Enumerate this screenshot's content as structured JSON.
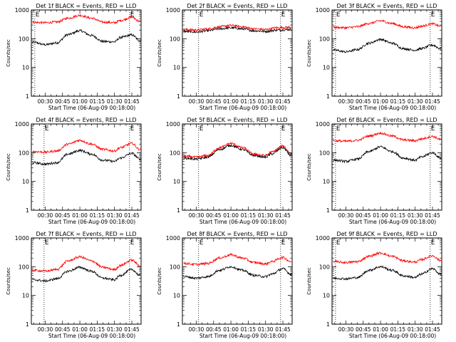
{
  "figure": {
    "x_axis_label": "Start Time (06-Aug-09 00:18:00)",
    "y_axis_label": "Counts/sec",
    "x_tick_labels": [
      "00:30",
      "00:45",
      "01:00",
      "01:15",
      "01:30",
      "01:45"
    ],
    "y_tick_labels": [
      "1",
      "10",
      "100",
      "1000"
    ],
    "marker_label": "E",
    "colors": {
      "events": "#000000",
      "lld": "#ff0000"
    }
  },
  "chart_data": [
    {
      "type": "line",
      "title": "Det 1f BLACK = Events, RED = LLD",
      "xlabel": "Start Time (06-Aug-09 00:18:00)",
      "ylabel": "Counts/sec",
      "yscale": "log",
      "ylim": [
        1,
        1000
      ],
      "xlim": [
        "00:18",
        "01:53"
      ],
      "x_ticks": [
        "00:30",
        "00:45",
        "01:00",
        "01:15",
        "01:30",
        "01:45"
      ],
      "marker_lines": [
        "00:21",
        "01:43"
      ],
      "series": [
        {
          "color": "#000000",
          "x": [
            "00:20",
            "00:30",
            "00:40",
            "00:50",
            "01:00",
            "01:10",
            "01:20",
            "01:30",
            "01:35",
            "01:45",
            "01:52"
          ],
          "values": [
            75,
            62,
            72,
            140,
            190,
            130,
            80,
            78,
            110,
            135,
            85
          ]
        },
        {
          "color": "#ff0000",
          "x": [
            "00:20",
            "00:30",
            "00:40",
            "00:50",
            "01:00",
            "01:10",
            "01:20",
            "01:30",
            "01:35",
            "01:45",
            "01:52"
          ],
          "values": [
            370,
            360,
            380,
            520,
            650,
            520,
            380,
            360,
            430,
            560,
            400
          ]
        }
      ]
    },
    {
      "type": "line",
      "title": "Det 2f BLACK = Events, RED = LLD",
      "xlabel": "Start Time (06-Aug-09 00:18:00)",
      "ylabel": "Counts/sec",
      "yscale": "log",
      "ylim": [
        1,
        1000
      ],
      "xlim": [
        "00:18",
        "01:53"
      ],
      "x_ticks": [
        "00:30",
        "00:45",
        "01:00",
        "01:15",
        "01:30",
        "01:45"
      ],
      "marker_lines": [
        "00:32",
        "01:43"
      ],
      "series": [
        {
          "color": "#000000",
          "x": [
            "00:20",
            "00:30",
            "00:40",
            "00:50",
            "01:00",
            "01:10",
            "01:20",
            "01:30",
            "01:40",
            "01:52"
          ],
          "values": [
            180,
            170,
            190,
            220,
            240,
            220,
            190,
            180,
            200,
            210
          ]
        },
        {
          "color": "#ff0000",
          "x": [
            "00:20",
            "00:30",
            "00:40",
            "00:50",
            "01:00",
            "01:10",
            "01:20",
            "01:30",
            "01:40",
            "01:52"
          ],
          "values": [
            210,
            200,
            220,
            260,
            290,
            260,
            220,
            210,
            240,
            250
          ]
        }
      ]
    },
    {
      "type": "line",
      "title": "Det 3f BLACK = Events, RED = LLD",
      "xlabel": "Start Time (06-Aug-09 00:18:00)",
      "ylabel": "Counts/sec",
      "yscale": "log",
      "ylim": [
        1,
        1000
      ],
      "xlim": [
        "00:18",
        "01:53"
      ],
      "x_ticks": [
        "00:30",
        "00:45",
        "01:00",
        "01:15",
        "01:30",
        "01:45"
      ],
      "marker_lines": [
        "00:21",
        "01:43"
      ],
      "series": [
        {
          "color": "#000000",
          "x": [
            "00:20",
            "00:30",
            "00:40",
            "00:50",
            "01:00",
            "01:10",
            "01:20",
            "01:30",
            "01:35",
            "01:45",
            "01:52"
          ],
          "values": [
            40,
            35,
            42,
            70,
            95,
            70,
            45,
            40,
            45,
            60,
            45
          ]
        },
        {
          "color": "#ff0000",
          "x": [
            "00:20",
            "00:30",
            "00:40",
            "00:50",
            "01:00",
            "01:10",
            "01:20",
            "01:30",
            "01:35",
            "01:45",
            "01:52"
          ],
          "values": [
            250,
            240,
            260,
            340,
            420,
            340,
            260,
            240,
            270,
            330,
            270
          ]
        }
      ]
    },
    {
      "type": "line",
      "title": "Det 4f BLACK = Events, RED = LLD",
      "xlabel": "Start Time (06-Aug-09 00:18:00)",
      "ylabel": "Counts/sec",
      "yscale": "log",
      "ylim": [
        1,
        1000
      ],
      "xlim": [
        "00:18",
        "01:53"
      ],
      "x_ticks": [
        "00:30",
        "00:45",
        "01:00",
        "01:15",
        "01:30",
        "01:45"
      ],
      "marker_lines": [
        "00:29",
        "01:43"
      ],
      "series": [
        {
          "color": "#000000",
          "x": [
            "00:20",
            "00:30",
            "00:40",
            "00:50",
            "01:00",
            "01:10",
            "01:20",
            "01:30",
            "01:35",
            "01:45",
            "01:52"
          ],
          "values": [
            45,
            40,
            45,
            90,
            120,
            90,
            55,
            50,
            65,
            95,
            60
          ]
        },
        {
          "color": "#ff0000",
          "x": [
            "00:20",
            "00:30",
            "00:40",
            "00:50",
            "01:00",
            "01:10",
            "01:20",
            "01:30",
            "01:35",
            "01:45",
            "01:52"
          ],
          "values": [
            110,
            105,
            115,
            200,
            270,
            200,
            130,
            115,
            150,
            210,
            130
          ]
        }
      ]
    },
    {
      "type": "line",
      "title": "Det 5f BLACK = Events, RED = LLD",
      "xlabel": "Start Time (06-Aug-09 00:18:00)",
      "ylabel": "Counts/sec",
      "yscale": "log",
      "ylim": [
        1,
        1000
      ],
      "xlim": [
        "00:18",
        "01:53"
      ],
      "x_ticks": [
        "00:30",
        "00:45",
        "01:00",
        "01:15",
        "01:30",
        "01:45"
      ],
      "marker_lines": [
        "00:32",
        "01:43"
      ],
      "series": [
        {
          "color": "#000000",
          "x": [
            "00:20",
            "00:30",
            "00:40",
            "00:50",
            "01:00",
            "01:10",
            "01:20",
            "01:30",
            "01:35",
            "01:45",
            "01:52"
          ],
          "values": [
            65,
            60,
            70,
            130,
            180,
            130,
            80,
            70,
            90,
            150,
            80
          ]
        },
        {
          "color": "#ff0000",
          "x": [
            "00:20",
            "00:30",
            "00:40",
            "00:50",
            "01:00",
            "01:10",
            "01:20",
            "01:30",
            "01:35",
            "01:45",
            "01:52"
          ],
          "values": [
            75,
            70,
            80,
            150,
            210,
            150,
            90,
            80,
            105,
            170,
            95
          ]
        }
      ]
    },
    {
      "type": "line",
      "title": "Det 6f BLACK = Events, RED = LLD",
      "xlabel": "Start Time (06-Aug-09 00:18:00)",
      "ylabel": "Counts/sec",
      "yscale": "log",
      "ylim": [
        1,
        1000
      ],
      "xlim": [
        "00:18",
        "01:53"
      ],
      "x_ticks": [
        "00:30",
        "00:45",
        "01:00",
        "01:15",
        "01:30",
        "01:45"
      ],
      "marker_lines": [
        "00:21",
        "01:43"
      ],
      "series": [
        {
          "color": "#000000",
          "x": [
            "00:20",
            "00:30",
            "00:40",
            "00:50",
            "01:00",
            "01:10",
            "01:20",
            "01:30",
            "01:35",
            "01:45",
            "01:52"
          ],
          "values": [
            55,
            50,
            60,
            110,
            160,
            110,
            65,
            55,
            70,
            100,
            65
          ]
        },
        {
          "color": "#ff0000",
          "x": [
            "00:20",
            "00:30",
            "00:40",
            "00:50",
            "01:00",
            "01:10",
            "01:20",
            "01:30",
            "01:35",
            "01:45",
            "01:52"
          ],
          "values": [
            260,
            250,
            270,
            380,
            480,
            380,
            280,
            260,
            300,
            370,
            290
          ]
        }
      ]
    },
    {
      "type": "line",
      "title": "Det 7f BLACK = Events, RED = LLD",
      "xlabel": "Start Time (06-Aug-09 00:18:00)",
      "ylabel": "Counts/sec",
      "yscale": "log",
      "ylim": [
        1,
        1000
      ],
      "xlim": [
        "00:18",
        "01:53"
      ],
      "x_ticks": [
        "00:30",
        "00:45",
        "01:00",
        "01:15",
        "01:30",
        "01:45"
      ],
      "marker_lines": [
        "00:29",
        "01:43"
      ],
      "series": [
        {
          "color": "#000000",
          "x": [
            "00:20",
            "00:30",
            "00:40",
            "00:50",
            "01:00",
            "01:10",
            "01:20",
            "01:30",
            "01:35",
            "01:45",
            "01:52"
          ],
          "values": [
            35,
            32,
            38,
            70,
            95,
            70,
            40,
            35,
            50,
            80,
            50
          ]
        },
        {
          "color": "#ff0000",
          "x": [
            "00:20",
            "00:30",
            "00:40",
            "00:50",
            "01:00",
            "01:10",
            "01:20",
            "01:30",
            "01:35",
            "01:45",
            "01:52"
          ],
          "values": [
            75,
            70,
            80,
            160,
            220,
            160,
            95,
            80,
            110,
            170,
            110
          ]
        }
      ]
    },
    {
      "type": "line",
      "title": "Det 8f BLACK = Events, RED = LLD",
      "xlabel": "Start Time (06-Aug-09 00:18:00)",
      "ylabel": "Counts/sec",
      "yscale": "log",
      "ylim": [
        1,
        1000
      ],
      "xlim": [
        "00:18",
        "01:53"
      ],
      "x_ticks": [
        "00:30",
        "00:45",
        "01:00",
        "01:15",
        "01:30",
        "01:45"
      ],
      "marker_lines": [
        "00:32",
        "01:43"
      ],
      "series": [
        {
          "color": "#000000",
          "x": [
            "00:20",
            "00:30",
            "00:40",
            "00:50",
            "01:00",
            "01:10",
            "01:20",
            "01:30",
            "01:35",
            "01:45",
            "01:52"
          ],
          "values": [
            45,
            40,
            45,
            75,
            100,
            75,
            50,
            45,
            55,
            85,
            55
          ]
        },
        {
          "color": "#ff0000",
          "x": [
            "00:20",
            "00:30",
            "00:40",
            "00:50",
            "01:00",
            "01:10",
            "01:20",
            "01:30",
            "01:35",
            "01:45",
            "01:52"
          ],
          "values": [
            130,
            120,
            130,
            200,
            260,
            200,
            140,
            125,
            150,
            210,
            150
          ]
        }
      ]
    },
    {
      "type": "line",
      "title": "Det 9f BLACK = Events, RED = LLD",
      "xlabel": "Start Time (06-Aug-09 00:18:00)",
      "ylabel": "Counts/sec",
      "yscale": "log",
      "ylim": [
        1,
        1000
      ],
      "xlim": [
        "00:18",
        "01:53"
      ],
      "x_ticks": [
        "00:30",
        "00:45",
        "01:00",
        "01:15",
        "01:30",
        "01:45"
      ],
      "marker_lines": [
        "00:21",
        "01:43"
      ],
      "series": [
        {
          "color": "#000000",
          "x": [
            "00:20",
            "00:30",
            "00:40",
            "00:50",
            "01:00",
            "01:10",
            "01:20",
            "01:30",
            "01:35",
            "01:45",
            "01:52"
          ],
          "values": [
            40,
            38,
            42,
            75,
            100,
            75,
            48,
            42,
            55,
            85,
            55
          ]
        },
        {
          "color": "#ff0000",
          "x": [
            "00:20",
            "00:30",
            "00:40",
            "00:50",
            "01:00",
            "01:10",
            "01:20",
            "01:30",
            "01:35",
            "01:45",
            "01:52"
          ],
          "values": [
            150,
            140,
            150,
            230,
            300,
            230,
            160,
            145,
            175,
            240,
            165
          ]
        }
      ]
    }
  ]
}
